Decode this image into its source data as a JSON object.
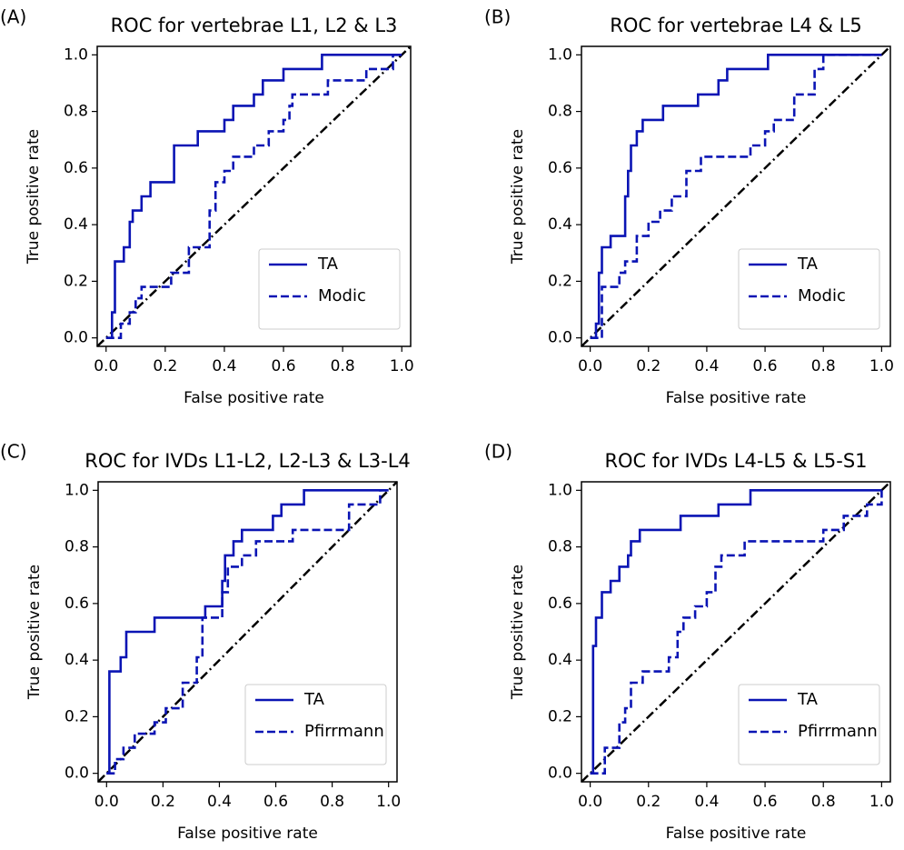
{
  "chart_data": [
    {
      "type": "line",
      "label": "(A)",
      "title": "ROC for vertebrae L1, L2 & L3",
      "xlabel": "False positive rate",
      "ylabel": "True positive rate",
      "xlim": [
        -0.03,
        1.03
      ],
      "ylim": [
        -0.03,
        1.03
      ],
      "xticks": [
        {
          "value": 0,
          "label": "0.0"
        },
        0.2,
        0.4,
        0.6,
        0.8,
        {
          "value": 1,
          "label": "1.0"
        }
      ],
      "yticks": [
        {
          "value": 0,
          "label": "0.0"
        },
        0.2,
        0.4,
        0.6,
        0.8,
        {
          "value": 1,
          "label": "1.0"
        }
      ],
      "legend": "lower right",
      "series": [
        {
          "name": "TA",
          "color": "#0a14b4",
          "linestyle": "solid",
          "x": [
            0,
            0.02,
            0.02,
            0.03,
            0.03,
            0.06,
            0.06,
            0.08,
            0.08,
            0.09,
            0.09,
            0.12,
            0.12,
            0.15,
            0.15,
            0.23,
            0.23,
            0.31,
            0.31,
            0.4,
            0.4,
            0.43,
            0.43,
            0.5,
            0.5,
            0.53,
            0.53,
            0.6,
            0.6,
            0.73,
            0.73,
            1.0
          ],
          "values": [
            0,
            0,
            0.09,
            0.09,
            0.27,
            0.27,
            0.32,
            0.32,
            0.41,
            0.41,
            0.45,
            0.45,
            0.5,
            0.5,
            0.55,
            0.55,
            0.68,
            0.68,
            0.73,
            0.73,
            0.77,
            0.77,
            0.82,
            0.82,
            0.86,
            0.86,
            0.91,
            0.91,
            0.95,
            0.95,
            1.0,
            1.0
          ]
        },
        {
          "name": "Modic",
          "color": "#0a14b4",
          "linestyle": "dashed",
          "x": [
            0,
            0.05,
            0.05,
            0.08,
            0.08,
            0.1,
            0.1,
            0.12,
            0.12,
            0.22,
            0.22,
            0.28,
            0.28,
            0.35,
            0.35,
            0.37,
            0.37,
            0.4,
            0.4,
            0.43,
            0.43,
            0.5,
            0.5,
            0.55,
            0.55,
            0.6,
            0.6,
            0.62,
            0.62,
            0.63,
            0.63,
            0.75,
            0.75,
            0.88,
            0.88,
            0.97,
            0.97,
            1.0
          ],
          "values": [
            0,
            0,
            0.05,
            0.05,
            0.09,
            0.09,
            0.14,
            0.14,
            0.18,
            0.18,
            0.23,
            0.23,
            0.32,
            0.32,
            0.45,
            0.45,
            0.55,
            0.55,
            0.59,
            0.59,
            0.64,
            0.64,
            0.68,
            0.68,
            0.73,
            0.73,
            0.77,
            0.77,
            0.82,
            0.82,
            0.86,
            0.86,
            0.91,
            0.91,
            0.95,
            0.95,
            1.0,
            1.0
          ]
        }
      ]
    },
    {
      "type": "line",
      "label": "(B)",
      "title": "ROC for vertebrae L4 & L5",
      "xlabel": "False positive rate",
      "ylabel": "True positive rate",
      "xlim": [
        -0.03,
        1.03
      ],
      "ylim": [
        -0.03,
        1.03
      ],
      "xticks": [
        {
          "value": 0,
          "label": "0.0"
        },
        0.2,
        0.4,
        0.6,
        0.8,
        {
          "value": 1,
          "label": "1.0"
        }
      ],
      "yticks": [
        {
          "value": 0,
          "label": "0.0"
        },
        0.2,
        0.4,
        0.6,
        0.8,
        {
          "value": 1,
          "label": "1.0"
        }
      ],
      "legend": "lower right",
      "series": [
        {
          "name": "TA",
          "color": "#0a14b4",
          "linestyle": "solid",
          "x": [
            0,
            0.02,
            0.02,
            0.03,
            0.03,
            0.04,
            0.04,
            0.07,
            0.07,
            0.12,
            0.12,
            0.13,
            0.13,
            0.14,
            0.14,
            0.16,
            0.16,
            0.18,
            0.18,
            0.25,
            0.25,
            0.37,
            0.37,
            0.44,
            0.44,
            0.47,
            0.47,
            0.61,
            0.61,
            1.0
          ],
          "values": [
            0,
            0,
            0.05,
            0.05,
            0.23,
            0.23,
            0.32,
            0.32,
            0.36,
            0.36,
            0.5,
            0.5,
            0.59,
            0.59,
            0.68,
            0.68,
            0.73,
            0.73,
            0.77,
            0.77,
            0.82,
            0.82,
            0.86,
            0.86,
            0.91,
            0.91,
            0.95,
            0.95,
            1.0,
            1.0
          ]
        },
        {
          "name": "Modic",
          "color": "#0a14b4",
          "linestyle": "dashed",
          "x": [
            0,
            0.04,
            0.04,
            0.1,
            0.1,
            0.12,
            0.12,
            0.16,
            0.16,
            0.2,
            0.2,
            0.24,
            0.24,
            0.28,
            0.28,
            0.33,
            0.33,
            0.38,
            0.38,
            0.55,
            0.55,
            0.6,
            0.6,
            0.63,
            0.63,
            0.7,
            0.7,
            0.77,
            0.77,
            0.8,
            0.8,
            1.0
          ],
          "values": [
            0,
            0,
            0.18,
            0.18,
            0.23,
            0.23,
            0.27,
            0.27,
            0.36,
            0.36,
            0.41,
            0.41,
            0.45,
            0.45,
            0.5,
            0.5,
            0.59,
            0.59,
            0.64,
            0.64,
            0.68,
            0.68,
            0.73,
            0.73,
            0.77,
            0.77,
            0.86,
            0.86,
            0.95,
            0.95,
            1.0,
            1.0
          ]
        }
      ]
    },
    {
      "type": "line",
      "label": "(C)",
      "title": "ROC for IVDs L1-L2, L2-L3 & L3-L4",
      "xlabel": "False positive rate",
      "ylabel": "True positive rate",
      "xlim": [
        -0.03,
        1.03
      ],
      "ylim": [
        -0.03,
        1.03
      ],
      "xticks": [
        {
          "value": 0,
          "label": "0.0"
        },
        0.2,
        0.4,
        0.6,
        0.8,
        {
          "value": 1,
          "label": "1.0"
        }
      ],
      "yticks": [
        {
          "value": 0,
          "label": "0.0"
        },
        0.2,
        0.4,
        0.6,
        0.8,
        {
          "value": 1,
          "label": "1.0"
        }
      ],
      "legend": "lower right",
      "series": [
        {
          "name": "TA",
          "color": "#0a14b4",
          "linestyle": "solid",
          "x": [
            0,
            0.01,
            0.01,
            0.05,
            0.05,
            0.07,
            0.07,
            0.17,
            0.17,
            0.35,
            0.35,
            0.41,
            0.41,
            0.42,
            0.42,
            0.45,
            0.45,
            0.48,
            0.48,
            0.59,
            0.59,
            0.62,
            0.62,
            0.7,
            0.7,
            1.0
          ],
          "values": [
            0,
            0,
            0.36,
            0.36,
            0.41,
            0.41,
            0.5,
            0.5,
            0.55,
            0.55,
            0.59,
            0.59,
            0.68,
            0.68,
            0.77,
            0.77,
            0.82,
            0.82,
            0.86,
            0.86,
            0.91,
            0.91,
            0.95,
            0.95,
            1.0,
            1.0
          ]
        },
        {
          "name": "Pfirrmann",
          "color": "#0a14b4",
          "linestyle": "dashed",
          "x": [
            0,
            0.03,
            0.03,
            0.06,
            0.06,
            0.1,
            0.1,
            0.17,
            0.17,
            0.21,
            0.21,
            0.27,
            0.27,
            0.32,
            0.32,
            0.34,
            0.34,
            0.41,
            0.41,
            0.43,
            0.43,
            0.48,
            0.48,
            0.53,
            0.53,
            0.66,
            0.66,
            0.86,
            0.86,
            0.97,
            0.97,
            1.0
          ],
          "values": [
            0,
            0,
            0.05,
            0.05,
            0.09,
            0.09,
            0.14,
            0.14,
            0.18,
            0.18,
            0.23,
            0.23,
            0.32,
            0.32,
            0.41,
            0.41,
            0.55,
            0.55,
            0.64,
            0.64,
            0.73,
            0.73,
            0.77,
            0.77,
            0.82,
            0.82,
            0.86,
            0.86,
            0.95,
            0.95,
            1.0,
            1.0
          ]
        }
      ]
    },
    {
      "type": "line",
      "label": "(D)",
      "title": "ROC for IVDs L4-L5 & L5-S1",
      "xlabel": "False positive rate",
      "ylabel": "True positive rate",
      "xlim": [
        -0.03,
        1.03
      ],
      "ylim": [
        -0.03,
        1.03
      ],
      "xticks": [
        {
          "value": 0,
          "label": "0.0"
        },
        0.2,
        0.4,
        0.6,
        0.8,
        {
          "value": 1,
          "label": "1.0"
        }
      ],
      "yticks": [
        {
          "value": 0,
          "label": "0.0"
        },
        0.2,
        0.4,
        0.6,
        0.8,
        {
          "value": 1,
          "label": "1.0"
        }
      ],
      "legend": "lower right",
      "series": [
        {
          "name": "TA",
          "color": "#0a14b4",
          "linestyle": "solid",
          "x": [
            0,
            0.01,
            0.01,
            0.02,
            0.02,
            0.04,
            0.04,
            0.07,
            0.07,
            0.1,
            0.1,
            0.13,
            0.13,
            0.14,
            0.14,
            0.17,
            0.17,
            0.31,
            0.31,
            0.44,
            0.44,
            0.55,
            0.55,
            1.0
          ],
          "values": [
            0,
            0,
            0.45,
            0.45,
            0.55,
            0.55,
            0.64,
            0.64,
            0.68,
            0.68,
            0.73,
            0.73,
            0.77,
            0.77,
            0.82,
            0.82,
            0.86,
            0.86,
            0.91,
            0.91,
            0.95,
            0.95,
            1.0,
            1.0
          ]
        },
        {
          "name": "Pfirrmann",
          "color": "#0a14b4",
          "linestyle": "dashed",
          "x": [
            0,
            0.05,
            0.05,
            0.1,
            0.1,
            0.12,
            0.12,
            0.14,
            0.14,
            0.18,
            0.18,
            0.27,
            0.27,
            0.3,
            0.3,
            0.32,
            0.32,
            0.36,
            0.36,
            0.4,
            0.4,
            0.43,
            0.43,
            0.45,
            0.45,
            0.53,
            0.53,
            0.8,
            0.8,
            0.87,
            0.87,
            0.95,
            0.95,
            1.0,
            1.0
          ],
          "values": [
            0,
            0,
            0.09,
            0.09,
            0.18,
            0.18,
            0.23,
            0.23,
            0.32,
            0.32,
            0.36,
            0.36,
            0.41,
            0.41,
            0.5,
            0.5,
            0.55,
            0.55,
            0.59,
            0.59,
            0.64,
            0.64,
            0.73,
            0.73,
            0.77,
            0.77,
            0.82,
            0.82,
            0.86,
            0.86,
            0.91,
            0.91,
            0.95,
            0.95,
            1.0
          ]
        }
      ]
    }
  ]
}
